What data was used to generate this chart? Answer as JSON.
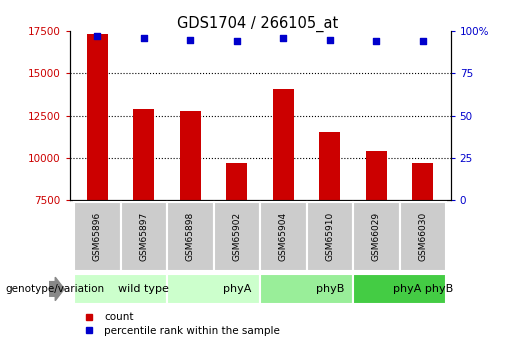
{
  "title": "GDS1704 / 266105_at",
  "samples": [
    "GSM65896",
    "GSM65897",
    "GSM65898",
    "GSM65902",
    "GSM65904",
    "GSM65910",
    "GSM66029",
    "GSM66030"
  ],
  "counts": [
    17300,
    12900,
    12800,
    9700,
    14100,
    11500,
    10400,
    9700
  ],
  "percentile_ranks": [
    97,
    96,
    95,
    94,
    96,
    95,
    94,
    94
  ],
  "groups": [
    {
      "label": "wild type",
      "start": 0,
      "end": 2,
      "color": "#ccffcc"
    },
    {
      "label": "phyA",
      "start": 2,
      "end": 4,
      "color": "#ccffcc"
    },
    {
      "label": "phyB",
      "start": 4,
      "end": 6,
      "color": "#99ee99"
    },
    {
      "label": "phyA phyB",
      "start": 6,
      "end": 8,
      "color": "#44cc44"
    }
  ],
  "bar_color": "#cc0000",
  "dot_color": "#0000cc",
  "ylim_left": [
    7500,
    17500
  ],
  "ylim_right": [
    0,
    100
  ],
  "yticks_left": [
    7500,
    10000,
    12500,
    15000,
    17500
  ],
  "yticks_right": [
    0,
    25,
    50,
    75,
    100
  ],
  "ytick_labels_right": [
    "0",
    "25",
    "50",
    "75",
    "100%"
  ],
  "grid_values": [
    10000,
    12500,
    15000
  ],
  "bar_width": 0.45,
  "legend_count_label": "count",
  "legend_pct_label": "percentile rank within the sample",
  "genotype_label": "genotype/variation",
  "sample_box_color": "#cccccc",
  "arrow_color": "#888888"
}
